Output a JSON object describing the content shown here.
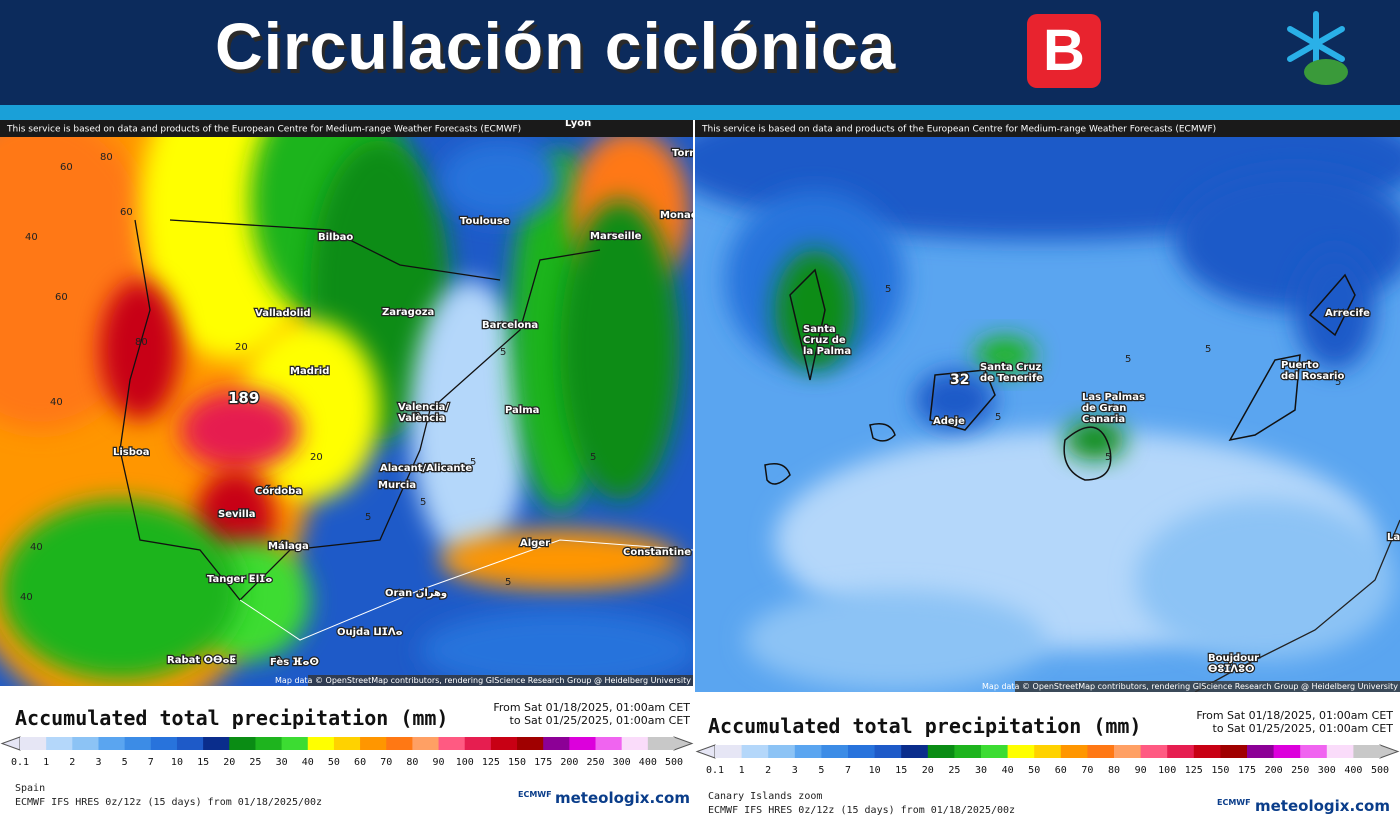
{
  "header": {
    "title": "Circulación ciclónica",
    "badge": "B"
  },
  "panels": [
    {
      "attribution": "This service is based on data and products of the European Centre for Medium-range Weather Forecasts (ECMWF)",
      "map_credit": "Map data © OpenStreetMap contributors, rendering GIScience Research Group @ Heidelberg University",
      "places": [
        [
          "Lyon"
        ],
        [
          "Torr"
        ],
        [
          "Monac"
        ],
        [
          "Toulouse"
        ],
        [
          "Marseille"
        ],
        [
          "Bilbao"
        ],
        [
          "Valladolid"
        ],
        [
          "Zaragoza"
        ],
        [
          "Barcelona"
        ],
        [
          "Madrid"
        ],
        [
          "Valencia/",
          "València"
        ],
        [
          "Palma"
        ],
        [
          "Lisboa"
        ],
        [
          "Alacant/Alicante"
        ],
        [
          "Murcia"
        ],
        [
          "Córdoba"
        ],
        [
          "Sevilla"
        ],
        [
          "Málaga"
        ],
        [
          "Tanger ⵟⵏⵊⴰ"
        ],
        [
          "Alger"
        ],
        [
          "Constantine"
        ],
        [
          "Oran وهران"
        ],
        [
          "Oujda ⵡⵊⴷⴰ"
        ],
        [
          "Rabat ⵔⴱⴰⵟ"
        ],
        [
          "Fès ⴼⴰⵙ"
        ]
      ],
      "max_value": "189",
      "contour_labels": [
        "80",
        "60",
        "60",
        "40",
        "80",
        "60",
        "20",
        "40",
        "40",
        "5",
        "5",
        "5",
        "5",
        "5",
        "40",
        "20",
        "5"
      ],
      "legend": {
        "title": "Accumulated total precipitation (mm)",
        "from": "From Sat 01/18/2025, 01:00am CET",
        "to": "to Sat 01/25/2025, 01:00am CET",
        "ticks": [
          "0.1",
          "1",
          "2",
          "3",
          "5",
          "7",
          "10",
          "15",
          "20",
          "25",
          "30",
          "40",
          "50",
          "60",
          "70",
          "80",
          "90",
          "100",
          "125",
          "150",
          "175",
          "200",
          "250",
          "300",
          "400",
          "500"
        ]
      },
      "region": "Spain",
      "model": "ECMWF IFS HRES 0z/12z (15 days) from  01/18/2025/00z",
      "logo_small": "ECMWF",
      "logo": "meteologix.com"
    },
    {
      "attribution": "This service is based on data and products of the European Centre for Medium-range Weather Forecasts (ECMWF)",
      "map_credit": "Map data © OpenStreetMap contributors, rendering GIScience Research Group @ Heidelberg University",
      "places": [
        [
          "Santa",
          "Cruz de",
          "la Palma"
        ],
        [
          "Santa Cruz",
          "de Tenerife"
        ],
        [
          "Adeje"
        ],
        [
          "Las Palmas",
          "de Gran",
          "Canaria"
        ],
        [
          "Arrecife"
        ],
        [
          "Puerto",
          "del Rosario"
        ],
        [
          "Boujdour",
          "ⴱⵓⵊⴷⵓⵔ"
        ],
        [
          "Laayo"
        ]
      ],
      "max_value": "32",
      "contour_labels": [
        "5",
        "5",
        "5",
        "5",
        "5",
        "5"
      ],
      "legend": {
        "title": "Accumulated total precipitation (mm)",
        "from": "From Sat 01/18/2025, 01:00am CET",
        "to": "to Sat 01/25/2025, 01:00am CET",
        "ticks": [
          "0.1",
          "1",
          "2",
          "3",
          "5",
          "7",
          "10",
          "15",
          "20",
          "25",
          "30",
          "40",
          "50",
          "60",
          "70",
          "80",
          "90",
          "100",
          "125",
          "150",
          "175",
          "200",
          "250",
          "300",
          "400",
          "500"
        ]
      },
      "region": "Canary Islands zoom",
      "model": "ECMWF IFS HRES 0z/12z (15 days) from  01/18/2025/00z",
      "logo_small": "ECMWF",
      "logo": "meteologix.com"
    }
  ],
  "legend_colors": [
    "#e6e6f5",
    "#b4d7fa",
    "#8cc3f5",
    "#5aa5f0",
    "#3c8ce6",
    "#2873dc",
    "#1e5ac8",
    "#0a2d8c",
    "#0a8c14",
    "#1eb41e",
    "#3cdc32",
    "#ffff00",
    "#ffd200",
    "#ff9600",
    "#ff7814",
    "#ffa064",
    "#ff5a82",
    "#e61e50",
    "#c80014",
    "#a00000",
    "#8c0096",
    "#dc00dc",
    "#f064f0",
    "#fadcfa",
    "#c8c8c8"
  ]
}
